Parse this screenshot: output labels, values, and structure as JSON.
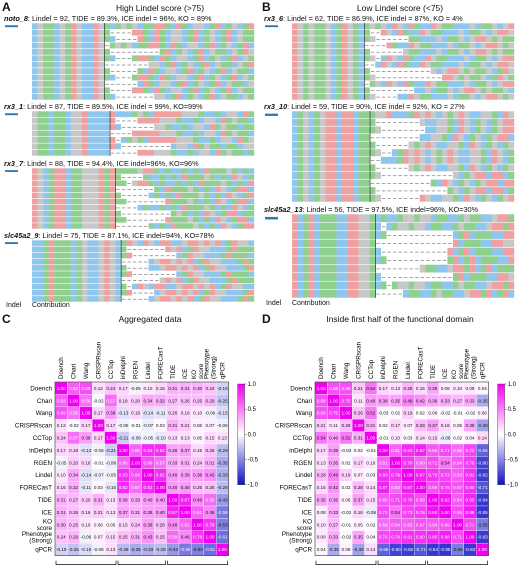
{
  "panels": {
    "A": {
      "letter": "A",
      "title": "High Lindel score (>75)"
    },
    "B": {
      "letter": "B",
      "title": "Low Lindel score (<75)"
    },
    "C": {
      "letter": "C",
      "title": "Aggregated data"
    },
    "D": {
      "letter": "D",
      "title": "Inside first half of the functional domain"
    }
  },
  "gels": [
    {
      "id": "g1",
      "gene": "noto_8",
      "stats": ": Lindel = 92, TIDE = 89.3%, ICE indel = 96%, KO = 89%",
      "rows": 12
    },
    {
      "id": "g2",
      "gene": "rx3_1",
      "stats": ": Lindel = 87, TIDE = 89.5%, ICE indel = 99%, KO=99%",
      "rows": 7
    },
    {
      "id": "g3",
      "gene": "rx3_7",
      "stats": ": Lindel = 88, TIDE = 94.4%, ICE indel=96%, KO=96%",
      "rows": 10
    },
    {
      "id": "g4",
      "gene": "slc45a2_9",
      "stats": ": Lindel = 75, TIDE = 87.1%, ICE indel=94%, KO=78%",
      "rows": 10
    },
    {
      "id": "g5",
      "gene": "rx3_6",
      "stats": ": Lindel = 62, TIDE = 86.9%, ICE indel = 87%, KO = 4%",
      "rows": 12
    },
    {
      "id": "g6",
      "gene": "rx3_10",
      "stats": ": Lindel = 59, TIDE = 90%, ICE indel = 92%, KO = 27%",
      "rows": 12
    },
    {
      "id": "g7",
      "gene": "slc45a2_13",
      "stats": ": Lindel = 56, TIDE = 97.5%, ICE indel=96%, KO=30%",
      "rows": 10
    }
  ],
  "gel_footer": {
    "indel": "Indel",
    "contribution": "Contribution"
  },
  "colors": {
    "A": "#8fd08f",
    "C": "#8fc6ee",
    "G": "#c8c8c8",
    "T": "#f0a0a0",
    "pos": "#f000f0",
    "neg": "#1010c8",
    "mid": "#ffffff"
  },
  "colorbar_ticks": [
    "1.0",
    "0.5",
    "0.0",
    "-0.5",
    "-1.0"
  ],
  "chart_data": [
    {
      "type": "heatmap",
      "title": "Aggregated data",
      "labels": [
        "Doench",
        "Chari",
        "Wang",
        "CRISPRscan",
        "CCTop",
        "inDelphi",
        "RGEN",
        "Lindel",
        "FORECasT",
        "TIDE",
        "ICE",
        "KO score",
        "Phenotype (Strong)",
        "qPCR"
      ],
      "groups": [
        {
          "name": "Predicted efficiency",
          "span": [
            0,
            4
          ]
        },
        {
          "name": "Predicted outcome",
          "span": [
            5,
            8
          ]
        },
        {
          "name": "Observed result",
          "span": [
            9,
            13
          ]
        }
      ],
      "color_range": [
        -1,
        1
      ],
      "values": [
        [
          1.0,
          0.63,
          0.69,
          0.12,
          0.24,
          0.17,
          -0.05,
          0.1,
          0.16,
          0.31,
          0.31,
          0.3,
          0.24,
          -0.19
        ],
        [
          0.63,
          1.0,
          0.56,
          -0.02,
          0.57,
          0.18,
          0.2,
          0.34,
          0.32,
          0.27,
          0.26,
          0.25,
          0.29,
          -0.25
        ],
        [
          0.69,
          0.56,
          1.0,
          0.17,
          0.38,
          -0.13,
          0.16,
          -0.14,
          -0.11,
          0.2,
          0.16,
          0.1,
          -0.06,
          -0.15
        ],
        [
          0.12,
          -0.02,
          0.17,
          1.0,
          0.17,
          -0.06,
          -0.01,
          -0.07,
          0.03,
          0.31,
          0.21,
          0.06,
          0.07,
          -0.06
        ],
        [
          0.24,
          0.57,
          0.38,
          0.17,
          1.0,
          -0.21,
          -0.08,
          -0.05,
          -0.1,
          0.13,
          0.13,
          0.05,
          0.15,
          0.13
        ],
        [
          0.17,
          0.18,
          -0.13,
          -0.06,
          -0.21,
          1.0,
          0.6,
          0.83,
          0.82,
          0.36,
          0.37,
          0.15,
          0.25,
          -0.29
        ],
        [
          -0.05,
          0.2,
          0.16,
          -0.01,
          -0.08,
          0.6,
          1.0,
          0.68,
          0.57,
          0.33,
          0.31,
          0.24,
          0.31,
          -0.35
        ],
        [
          0.1,
          0.34,
          -0.14,
          -0.07,
          -0.05,
          0.83,
          0.68,
          1.0,
          0.82,
          0.4,
          0.38,
          0.38,
          0.43,
          -0.33
        ],
        [
          0.16,
          0.32,
          -0.11,
          0.03,
          -0.1,
          0.82,
          0.57,
          0.82,
          1.0,
          0.4,
          0.4,
          0.26,
          0.25,
          -0.28
        ],
        [
          0.31,
          0.27,
          0.2,
          0.31,
          0.13,
          0.36,
          0.33,
          0.4,
          0.4,
          1.0,
          0.87,
          0.46,
          0.58,
          -0.43
        ],
        [
          0.31,
          0.26,
          0.16,
          0.21,
          0.13,
          0.37,
          0.31,
          0.38,
          0.4,
          0.87,
          1.0,
          0.61,
          0.46,
          -0.56
        ],
        [
          0.3,
          0.25,
          0.1,
          0.06,
          0.05,
          0.15,
          0.24,
          0.38,
          0.26,
          0.46,
          0.61,
          1.0,
          0.78,
          -0.53
        ],
        [
          0.24,
          0.29,
          -0.06,
          0.07,
          0.15,
          0.25,
          0.31,
          0.43,
          0.25,
          0.58,
          0.46,
          0.78,
          1.0,
          -0.61
        ],
        [
          -0.19,
          -0.25,
          -0.15,
          -0.06,
          0.13,
          -0.29,
          -0.35,
          -0.33,
          -0.28,
          -0.43,
          -0.56,
          -0.53,
          -0.61,
          1.0
        ]
      ]
    },
    {
      "type": "heatmap",
      "title": "Inside first half of the functional domain",
      "labels": [
        "Doench",
        "Chari",
        "Wang",
        "CRISPRscan",
        "CCTop",
        "inDelphi",
        "RGEN",
        "Lindel",
        "FORECasT",
        "TIDE",
        "ICE",
        "KO score",
        "Phenotype (Strong)",
        "qPCR"
      ],
      "groups": [
        {
          "name": "Predicted efficiency",
          "span": [
            0,
            4
          ]
        },
        {
          "name": "Predicted outcome",
          "span": [
            5,
            8
          ]
        },
        {
          "name": "Observed result",
          "span": [
            9,
            13
          ]
        }
      ],
      "color_range": [
        -1,
        1
      ],
      "values": [
        [
          1.0,
          0.68,
          0.68,
          0.21,
          0.54,
          0.17,
          0.13,
          0.28,
          0.15,
          0.35,
          0.08,
          0.1,
          0.09,
          0.04
        ],
        [
          0.68,
          1.0,
          0.75,
          0.11,
          0.4,
          0.38,
          0.35,
          0.49,
          0.42,
          0.36,
          0.33,
          0.27,
          0.33,
          -0.35
        ],
        [
          0.68,
          0.75,
          1.0,
          0.26,
          0.52,
          -0.03,
          0.02,
          0.19,
          0.02,
          0.06,
          -0.02,
          -0.01,
          -0.02,
          0.06
        ],
        [
          0.21,
          0.11,
          0.26,
          1.0,
          0.31,
          0.02,
          0.17,
          0.07,
          0.28,
          0.37,
          0.16,
          0.05,
          0.35,
          -0.39
        ],
        [
          0.54,
          0.4,
          0.52,
          0.31,
          1.0,
          -0.01,
          0.1,
          0.03,
          0.14,
          0.15,
          -0.08,
          0.02,
          0.04,
          0.14
        ],
        [
          0.17,
          0.38,
          -0.03,
          0.02,
          -0.01,
          1.0,
          0.61,
          0.83,
          0.87,
          0.66,
          0.71,
          0.58,
          0.72,
          -0.66
        ],
        [
          0.13,
          0.35,
          0.02,
          0.17,
          0.1,
          0.61,
          1.0,
          0.79,
          0.6,
          0.71,
          0.54,
          0.64,
          0.76,
          -0.8
        ],
        [
          0.28,
          0.49,
          0.19,
          0.07,
          0.03,
          0.83,
          0.79,
          1.0,
          0.87,
          0.79,
          0.73,
          0.63,
          0.81,
          -0.82
        ],
        [
          0.15,
          0.42,
          0.02,
          0.28,
          0.14,
          0.87,
          0.6,
          0.87,
          1.0,
          0.69,
          0.76,
          0.67,
          0.8,
          -0.71
        ],
        [
          0.35,
          0.36,
          0.06,
          0.37,
          0.15,
          0.66,
          0.71,
          0.79,
          0.69,
          1.0,
          0.92,
          0.64,
          0.85,
          -0.84
        ],
        [
          0.08,
          0.33,
          -0.02,
          0.16,
          -0.08,
          0.71,
          0.54,
          0.73,
          0.76,
          0.92,
          1.0,
          0.69,
          0.88,
          -0.85
        ],
        [
          0.1,
          0.27,
          -0.01,
          0.05,
          0.02,
          0.58,
          0.64,
          0.63,
          0.67,
          0.64,
          0.69,
          1.0,
          0.71,
          -0.55
        ],
        [
          0.09,
          0.33,
          -0.02,
          0.35,
          0.04,
          0.72,
          0.76,
          0.81,
          0.8,
          0.85,
          0.88,
          0.71,
          1.0,
          -0.83
        ],
        [
          0.04,
          -0.35,
          0.06,
          -0.39,
          0.14,
          -0.66,
          -0.8,
          -0.82,
          -0.71,
          -0.84,
          -0.85,
          -0.55,
          -0.83,
          1.0
        ]
      ]
    }
  ]
}
